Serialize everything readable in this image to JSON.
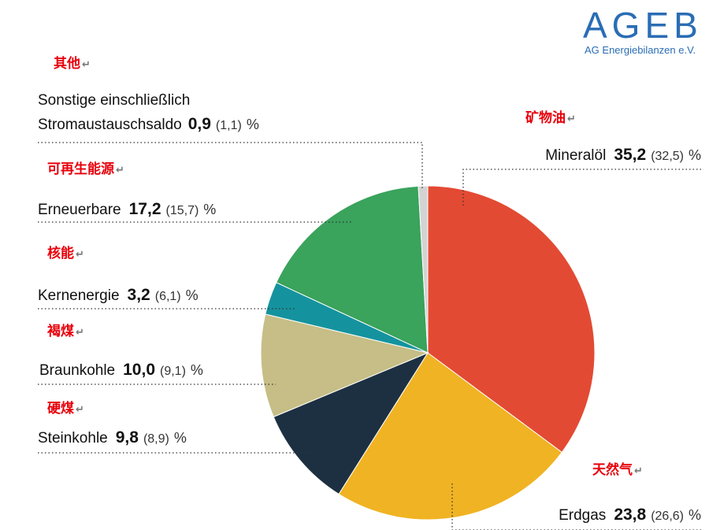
{
  "logo": {
    "name": "AGEB",
    "subtitle": "AG Energiebilanzen e.V."
  },
  "return_mark": "↵",
  "chart_data": {
    "type": "pie",
    "unit": "%",
    "slices": [
      {
        "key": "mineraloel",
        "label": "Mineralöl",
        "label_cn": "矿物油",
        "value": 35.2,
        "value_text": "35,2",
        "prev_text": "(32,5)",
        "color": "#e34a33"
      },
      {
        "key": "erdgas",
        "label": "Erdgas",
        "label_cn": "天然气",
        "value": 23.8,
        "value_text": "23,8",
        "prev_text": "(26,6)",
        "color": "#f0b323"
      },
      {
        "key": "steinkohle",
        "label": "Steinkohle",
        "label_cn": "硬煤",
        "value": 9.8,
        "value_text": "9,8",
        "prev_text": "(8,9)",
        "color": "#1d3042"
      },
      {
        "key": "braunkohle",
        "label": "Braunkohle",
        "label_cn": "褐煤",
        "value": 10.0,
        "value_text": "10,0",
        "prev_text": "(9,1)",
        "color": "#c6be86"
      },
      {
        "key": "kernenergie",
        "label": "Kernenergie",
        "label_cn": "核能",
        "value": 3.2,
        "value_text": "3,2",
        "prev_text": "(6,1)",
        "color": "#14939e"
      },
      {
        "key": "erneuerbare",
        "label": "Erneuerbare",
        "label_cn": "可再生能源",
        "value": 17.2,
        "value_text": "17,2",
        "prev_text": "(15,7)",
        "color": "#3aa35c"
      },
      {
        "key": "sonstige",
        "label": "Sonstige einschließlich",
        "label_line2": "Stromaustauschsaldo",
        "label_cn": "其他",
        "value": 0.9,
        "value_text": "0,9",
        "prev_text": "(1,1)",
        "color": "#d3d3d3"
      }
    ]
  }
}
